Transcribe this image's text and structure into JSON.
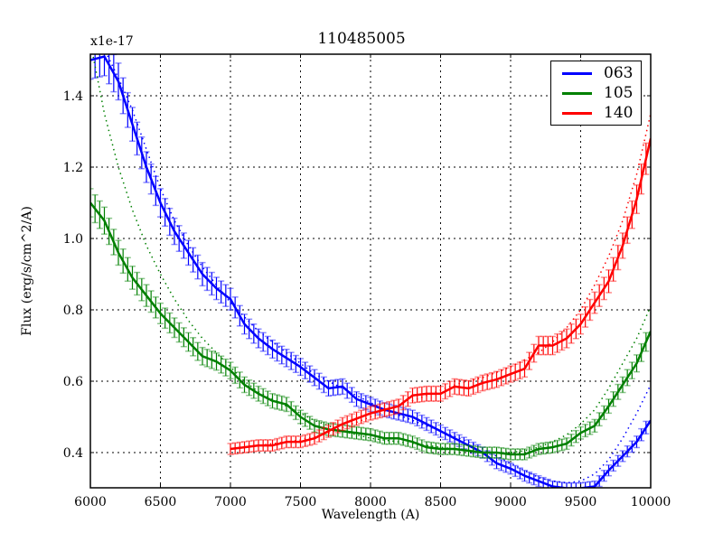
{
  "title": "110485005",
  "multiplier_label": "x1e-17",
  "xlabel": "Wavelength (A)",
  "ylabel": "Flux (erg/s/cm^2/A)",
  "legend": [
    {
      "label": "063",
      "color": "#0000ff"
    },
    {
      "label": "105",
      "color": "#008000"
    },
    {
      "label": "140",
      "color": "#ff0000"
    }
  ],
  "chart_data": {
    "type": "line",
    "title": "110485005",
    "xlabel": "Wavelength (A)",
    "ylabel": "Flux (erg/s/cm^2/A)",
    "y_scale_note": "x1e-17",
    "xlim": [
      6000,
      10000
    ],
    "ylim": [
      0.3,
      1.52
    ],
    "x_ticks": [
      6000,
      6500,
      7000,
      7500,
      8000,
      8500,
      9000,
      9500,
      10000
    ],
    "y_ticks": [
      0.4,
      0.6,
      0.8,
      1.0,
      1.2,
      1.4
    ],
    "grid": true,
    "legend_position": "upper right",
    "error_bars": true,
    "model_curves": "dotted lines per series",
    "series": [
      {
        "name": "063",
        "color": "#0000ff",
        "x": [
          6000,
          6100,
          6200,
          6300,
          6400,
          6500,
          6600,
          6700,
          6800,
          6900,
          7000,
          7100,
          7200,
          7300,
          7400,
          7500,
          7600,
          7700,
          7800,
          7900,
          8000,
          8100,
          8200,
          8300,
          8400,
          8500,
          8600,
          8700,
          8800,
          8900,
          9000,
          9100,
          9200,
          9300,
          9400,
          9500,
          9600,
          9700,
          9800,
          9900,
          10000
        ],
        "values": [
          1.5,
          1.51,
          1.44,
          1.32,
          1.2,
          1.1,
          1.02,
          0.96,
          0.9,
          0.86,
          0.83,
          0.76,
          0.72,
          0.69,
          0.665,
          0.64,
          0.61,
          0.58,
          0.585,
          0.55,
          0.535,
          0.52,
          0.51,
          0.5,
          0.48,
          0.46,
          0.44,
          0.42,
          0.4,
          0.37,
          0.355,
          0.335,
          0.32,
          0.305,
          0.3,
          0.3,
          0.305,
          0.35,
          0.39,
          0.43,
          0.49
        ],
        "model": [
          1.58,
          1.53,
          1.45,
          1.36,
          1.25,
          1.14,
          1.05,
          0.98,
          0.92,
          0.87,
          0.82,
          0.78,
          0.74,
          0.71,
          0.68,
          0.65,
          0.62,
          0.6,
          0.58,
          0.56,
          0.54,
          0.52,
          0.505,
          0.49,
          0.475,
          0.46,
          0.445,
          0.43,
          0.41,
          0.39,
          0.37,
          0.35,
          0.33,
          0.32,
          0.315,
          0.32,
          0.34,
          0.38,
          0.44,
          0.51,
          0.59
        ]
      },
      {
        "name": "105",
        "color": "#008000",
        "x": [
          6000,
          6100,
          6200,
          6300,
          6400,
          6500,
          6600,
          6700,
          6800,
          6900,
          7000,
          7100,
          7200,
          7300,
          7400,
          7500,
          7600,
          7700,
          7800,
          7900,
          8000,
          8100,
          8200,
          8300,
          8400,
          8500,
          8600,
          8700,
          8800,
          8900,
          9000,
          9100,
          9200,
          9300,
          9400,
          9500,
          9600,
          9700,
          9800,
          9900,
          10000
        ],
        "values": [
          1.1,
          1.05,
          0.96,
          0.89,
          0.84,
          0.79,
          0.75,
          0.71,
          0.67,
          0.655,
          0.63,
          0.59,
          0.565,
          0.545,
          0.535,
          0.5,
          0.475,
          0.465,
          0.46,
          0.455,
          0.45,
          0.44,
          0.44,
          0.43,
          0.415,
          0.41,
          0.41,
          0.405,
          0.4,
          0.4,
          0.395,
          0.395,
          0.41,
          0.415,
          0.425,
          0.455,
          0.475,
          0.53,
          0.59,
          0.65,
          0.74
        ],
        "model": [
          1.55,
          1.35,
          1.2,
          1.08,
          0.98,
          0.9,
          0.83,
          0.77,
          0.72,
          0.68,
          0.64,
          0.6,
          0.57,
          0.55,
          0.53,
          0.51,
          0.49,
          0.475,
          0.46,
          0.45,
          0.44,
          0.435,
          0.43,
          0.425,
          0.42,
          0.415,
          0.41,
          0.405,
          0.4,
          0.4,
          0.4,
          0.405,
          0.415,
          0.43,
          0.45,
          0.48,
          0.52,
          0.58,
          0.65,
          0.72,
          0.81
        ]
      },
      {
        "name": "140",
        "color": "#ff0000",
        "x": [
          7000,
          7100,
          7200,
          7300,
          7400,
          7500,
          7600,
          7700,
          7800,
          7900,
          8000,
          8100,
          8200,
          8300,
          8400,
          8500,
          8600,
          8700,
          8800,
          8900,
          9000,
          9100,
          9200,
          9300,
          9400,
          9500,
          9600,
          9700,
          9800,
          9900,
          10000
        ],
        "values": [
          0.41,
          0.415,
          0.42,
          0.42,
          0.43,
          0.43,
          0.44,
          0.46,
          0.48,
          0.495,
          0.51,
          0.52,
          0.53,
          0.56,
          0.565,
          0.565,
          0.585,
          0.58,
          0.595,
          0.605,
          0.62,
          0.635,
          0.7,
          0.7,
          0.72,
          0.76,
          0.82,
          0.88,
          0.98,
          1.11,
          1.28
        ],
        "model": [
          0.41,
          0.415,
          0.42,
          0.425,
          0.43,
          0.435,
          0.445,
          0.455,
          0.47,
          0.485,
          0.5,
          0.515,
          0.53,
          0.545,
          0.56,
          0.575,
          0.59,
          0.6,
          0.61,
          0.625,
          0.64,
          0.66,
          0.68,
          0.71,
          0.75,
          0.8,
          0.87,
          0.95,
          1.05,
          1.18,
          1.35
        ]
      }
    ]
  }
}
